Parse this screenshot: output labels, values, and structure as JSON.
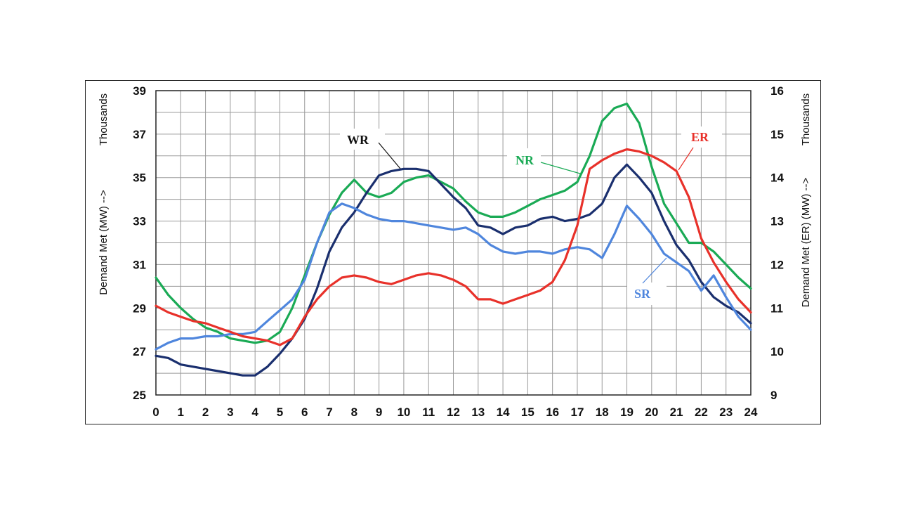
{
  "chart_data": {
    "type": "line",
    "title": "",
    "xlabel": "",
    "ylabel_left": "Demand Met (MW) -->",
    "ylabel_left_units": "Thousands",
    "ylabel_right": "Demand Met (ER) (MW) -->",
    "ylabel_right_units": "Thousands",
    "x_ticks": [
      "0",
      "1",
      "2",
      "3",
      "4",
      "5",
      "6",
      "7",
      "8",
      "9",
      "10",
      "11",
      "12",
      "13",
      "14",
      "15",
      "16",
      "17",
      "18",
      "19",
      "20",
      "21",
      "22",
      "23",
      "24"
    ],
    "left_ticks": [
      "25",
      "27",
      "29",
      "31",
      "33",
      "35",
      "37",
      "39"
    ],
    "right_ticks": [
      "9",
      "10",
      "11",
      "12",
      "13",
      "14",
      "15",
      "16"
    ],
    "xlim": [
      0,
      24
    ],
    "ylim_left": [
      25,
      39
    ],
    "ylim_right": [
      9,
      16
    ],
    "grid": true,
    "legend": "none (callout labels on lines)",
    "series": [
      {
        "name": "NR",
        "axis": "left",
        "color": "#1aaa55",
        "x": [
          0,
          0.5,
          1,
          1.5,
          2,
          2.5,
          3,
          3.5,
          4,
          4.5,
          5,
          5.5,
          6,
          6.5,
          7,
          7.5,
          8,
          8.5,
          9,
          9.5,
          10,
          10.5,
          11,
          11.5,
          12,
          12.5,
          13,
          13.5,
          14,
          14.5,
          15,
          15.5,
          16,
          16.5,
          17,
          17.5,
          18,
          18.5,
          19,
          19.5,
          20,
          20.5,
          21,
          21.5,
          22,
          22.5,
          23,
          23.5,
          24
        ],
        "y": [
          30.4,
          29.6,
          29,
          28.5,
          28.1,
          27.9,
          27.6,
          27.5,
          27.4,
          27.5,
          27.9,
          29,
          30.5,
          32,
          33.3,
          34.3,
          34.9,
          34.3,
          34.1,
          34.3,
          34.8,
          35,
          35.1,
          34.8,
          34.5,
          33.9,
          33.4,
          33.2,
          33.2,
          33.4,
          33.7,
          34,
          34.2,
          34.4,
          34.8,
          36,
          37.6,
          38.2,
          38.4,
          37.5,
          35.5,
          33.8,
          32.9,
          32,
          32,
          31.6,
          31,
          30.4,
          29.9
        ]
      },
      {
        "name": "WR",
        "axis": "left",
        "color": "#1a2f6e",
        "x": [
          0,
          0.5,
          1,
          1.5,
          2,
          2.5,
          3,
          3.5,
          4,
          4.5,
          5,
          5.5,
          6,
          6.5,
          7,
          7.5,
          8,
          8.5,
          9,
          9.5,
          10,
          10.5,
          11,
          11.5,
          12,
          12.5,
          13,
          13.5,
          14,
          14.5,
          15,
          15.5,
          16,
          16.5,
          17,
          17.5,
          18,
          18.5,
          19,
          19.5,
          20,
          20.5,
          21,
          21.5,
          22,
          22.5,
          23,
          23.5,
          24
        ],
        "y": [
          26.8,
          26.7,
          26.4,
          26.3,
          26.2,
          26.1,
          26,
          25.9,
          25.9,
          26.3,
          26.9,
          27.6,
          28.5,
          29.9,
          31.6,
          32.7,
          33.4,
          34.3,
          35.1,
          35.3,
          35.4,
          35.4,
          35.3,
          34.7,
          34.1,
          33.6,
          32.8,
          32.7,
          32.4,
          32.7,
          32.8,
          33.1,
          33.2,
          33,
          33.1,
          33.3,
          33.8,
          35,
          35.6,
          35,
          34.3,
          33,
          31.9,
          31.2,
          30.2,
          29.5,
          29.1,
          28.8,
          28.3
        ]
      },
      {
        "name": "SR",
        "axis": "left",
        "color": "#4f86dd",
        "x": [
          0,
          0.5,
          1,
          1.5,
          2,
          2.5,
          3,
          3.5,
          4,
          4.5,
          5,
          5.5,
          6,
          6.5,
          7,
          7.5,
          8,
          8.5,
          9,
          9.5,
          10,
          10.5,
          11,
          11.5,
          12,
          12.5,
          13,
          13.5,
          14,
          14.5,
          15,
          15.5,
          16,
          16.5,
          17,
          17.5,
          18,
          18.5,
          19,
          19.5,
          20,
          20.5,
          21,
          21.5,
          22,
          22.5,
          23,
          23.5,
          24
        ],
        "y": [
          27.1,
          27.4,
          27.6,
          27.6,
          27.7,
          27.7,
          27.8,
          27.8,
          27.9,
          28.4,
          28.9,
          29.4,
          30.3,
          32,
          33.4,
          33.8,
          33.6,
          33.3,
          33.1,
          33,
          33,
          32.9,
          32.8,
          32.7,
          32.6,
          32.7,
          32.4,
          31.9,
          31.6,
          31.5,
          31.6,
          31.6,
          31.5,
          31.7,
          31.8,
          31.7,
          31.3,
          32.4,
          33.7,
          33.1,
          32.4,
          31.5,
          31.1,
          30.7,
          29.8,
          30.5,
          29.5,
          28.6,
          28
        ]
      },
      {
        "name": "ER",
        "axis": "right",
        "color": "#e8312a",
        "x": [
          0,
          0.5,
          1,
          1.5,
          2,
          2.5,
          3,
          3.5,
          4,
          4.5,
          5,
          5.5,
          6,
          6.5,
          7,
          7.5,
          8,
          8.5,
          9,
          9.5,
          10,
          10.5,
          11,
          11.5,
          12,
          12.5,
          13,
          13.5,
          14,
          14.5,
          15,
          15.5,
          16,
          16.5,
          17,
          17.5,
          18,
          18.5,
          19,
          19.5,
          20,
          20.5,
          21,
          21.5,
          22,
          22.5,
          23,
          23.5,
          24
        ],
        "y": [
          11.05,
          10.9,
          10.8,
          10.7,
          10.65,
          10.55,
          10.45,
          10.35,
          10.3,
          10.25,
          10.15,
          10.3,
          10.8,
          11.2,
          11.5,
          11.7,
          11.75,
          11.7,
          11.6,
          11.55,
          11.65,
          11.75,
          11.8,
          11.75,
          11.65,
          11.5,
          11.2,
          11.2,
          11.1,
          11.2,
          11.3,
          11.4,
          11.6,
          12.1,
          12.9,
          14.2,
          14.4,
          14.55,
          14.65,
          14.6,
          14.5,
          14.35,
          14.15,
          13.55,
          12.6,
          12.05,
          11.6,
          11.2,
          10.9
        ]
      }
    ],
    "annotations": [
      {
        "text": "NR",
        "color": "#1aaa55"
      },
      {
        "text": "WR",
        "color": "#111111"
      },
      {
        "text": "ER",
        "color": "#e8312a"
      },
      {
        "text": "SR",
        "color": "#4f86dd"
      }
    ]
  }
}
